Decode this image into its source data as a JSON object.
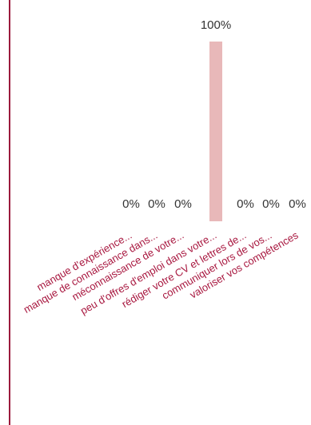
{
  "colors": {
    "bar": "#e8b8b9",
    "value_label": "#333333",
    "category_label": "#a8173f",
    "left_rule": "#9b1b3c"
  },
  "chart_data": {
    "type": "bar",
    "categories": [
      "manque d'expérience...",
      "manque de connaissance dans...",
      "méconnaissance de votre...",
      "peu d'offres d'emploi dans votre...",
      "rédiger votre CV et lettres de...",
      "communiquer lors de vos...",
      "valoriser vos compétences"
    ],
    "values": [
      0,
      0,
      0,
      100,
      0,
      0,
      0
    ],
    "value_labels": [
      "0%",
      "0%",
      "0%",
      "100%",
      "0%",
      "0%",
      "0%"
    ],
    "ylim": [
      0,
      100
    ],
    "grid": false,
    "legend": "none"
  }
}
